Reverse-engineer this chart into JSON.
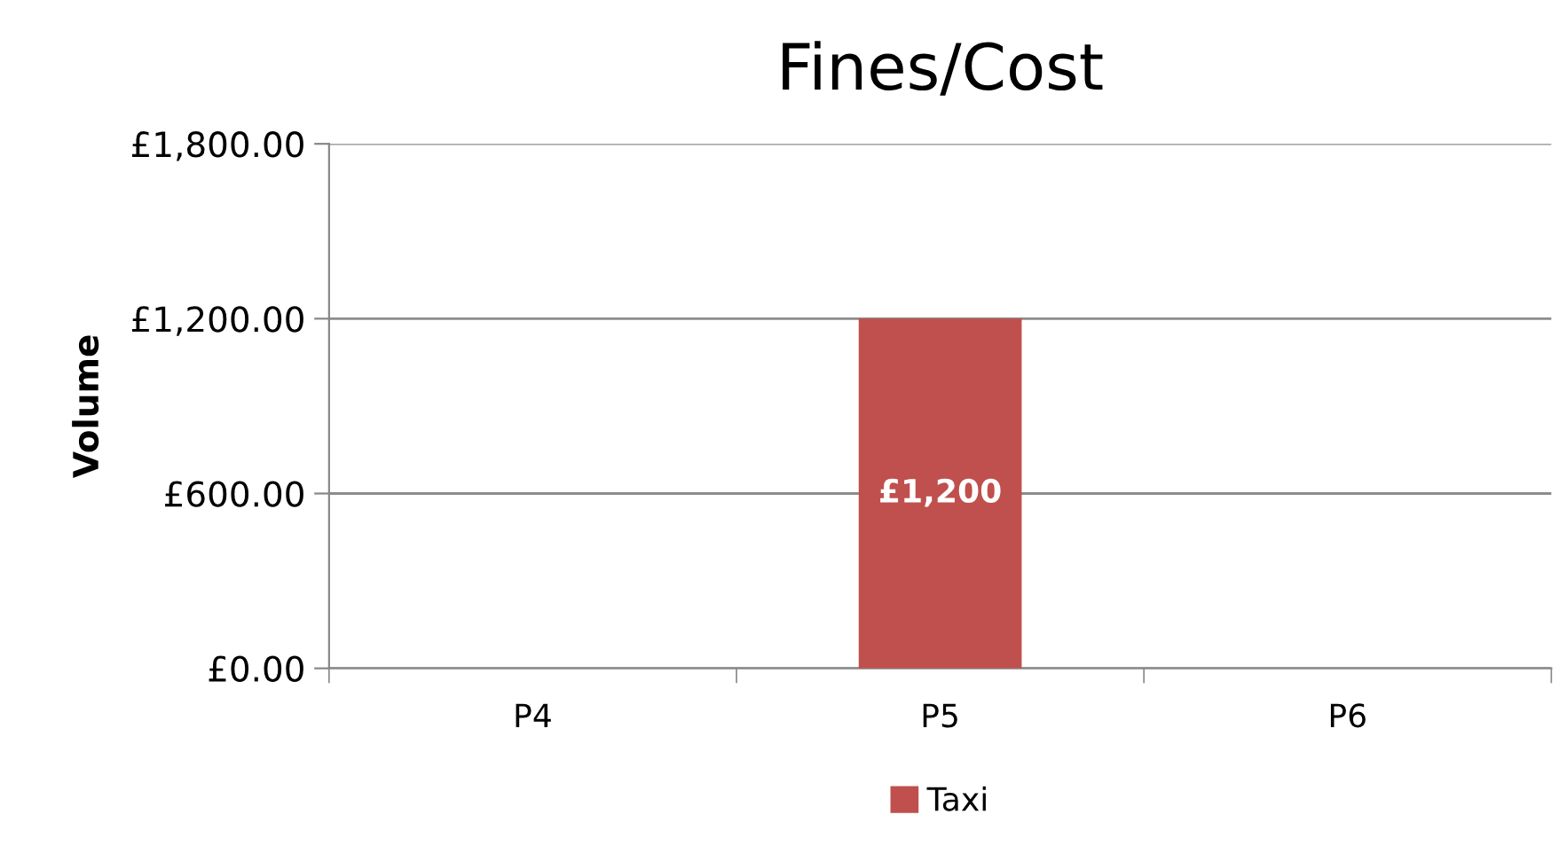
{
  "chart_data": {
    "type": "bar",
    "title": "Fines/Cost",
    "ylabel": "Volume",
    "categories": [
      "P4",
      "P5",
      "P6"
    ],
    "series": [
      {
        "name": "Taxi",
        "color": "#c0504d",
        "values": [
          null,
          1200,
          null
        ],
        "value_labels": [
          null,
          "£1,200",
          null
        ]
      }
    ],
    "ylim": [
      0,
      1800
    ],
    "yticks": [
      {
        "value": 0,
        "label": "£0.00"
      },
      {
        "value": 600,
        "label": "£600.00"
      },
      {
        "value": 1200,
        "label": "£1,200.00"
      },
      {
        "value": 1800,
        "label": "£1,800.00"
      }
    ],
    "grid": "y",
    "legend": "bottom"
  }
}
